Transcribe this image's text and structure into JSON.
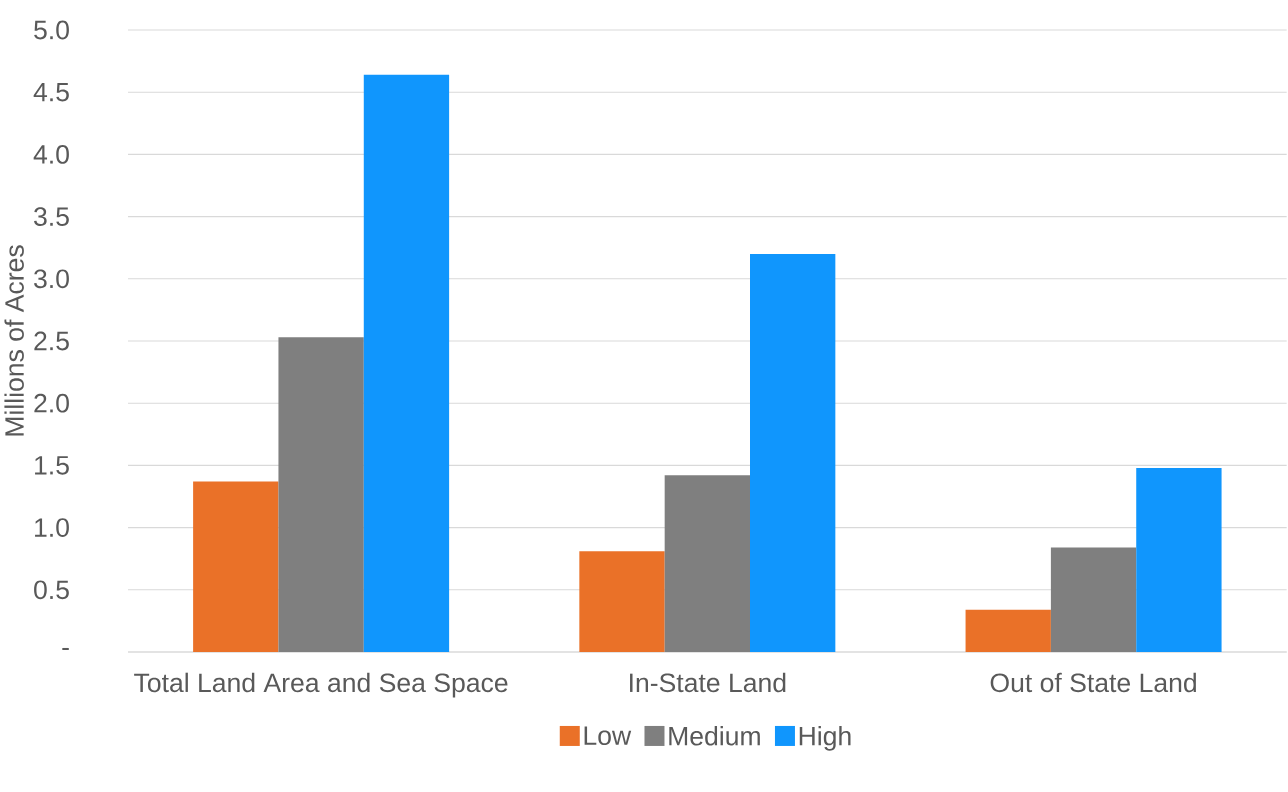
{
  "chart_data": {
    "type": "bar",
    "ylabel": "Millions of Acres",
    "categories": [
      "Total Land Area and Sea Space",
      "In-State Land",
      "Out of State Land"
    ],
    "series": [
      {
        "name": "Low",
        "color": "#ea7128",
        "values": [
          1.37,
          0.81,
          0.34
        ]
      },
      {
        "name": "Medium",
        "color": "#7f7f7f",
        "values": [
          2.53,
          1.42,
          0.84
        ]
      },
      {
        "name": "High",
        "color": "#1096fd",
        "values": [
          4.64,
          3.2,
          1.48
        ]
      }
    ],
    "ylim": [
      0,
      5
    ],
    "yticks": [
      {
        "value": 0,
        "label": "-"
      },
      {
        "value": 0.5,
        "label": "0.5"
      },
      {
        "value": 1,
        "label": "1.0"
      },
      {
        "value": 1.5,
        "label": "1.5"
      },
      {
        "value": 2,
        "label": "2.0"
      },
      {
        "value": 2.5,
        "label": "2.5"
      },
      {
        "value": 3,
        "label": "3.0"
      },
      {
        "value": 3.5,
        "label": "3.5"
      },
      {
        "value": 4,
        "label": "4.0"
      },
      {
        "value": 4.5,
        "label": "4.5"
      },
      {
        "value": 5,
        "label": "5.0"
      }
    ],
    "grid": "y",
    "legend": "bottom"
  }
}
